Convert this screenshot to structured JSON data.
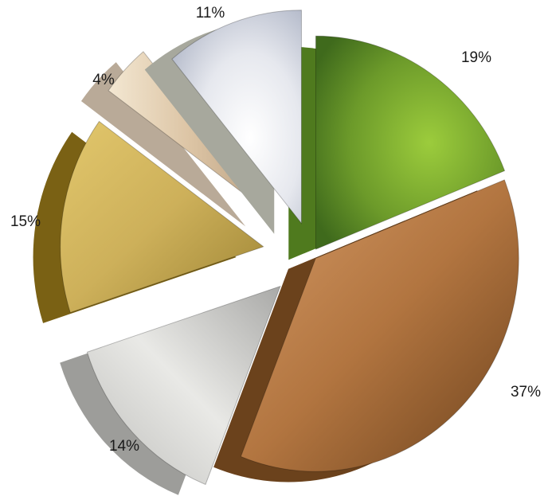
{
  "chart_data": {
    "type": "pie",
    "exploded": true,
    "style": "3d-textured",
    "slices": [
      {
        "label": "19%",
        "value": 19,
        "color": "#6e9b2c",
        "texture": "green-marble"
      },
      {
        "label": "37%",
        "value": 37,
        "color": "#b57a45",
        "texture": "brushed-copper"
      },
      {
        "label": "14%",
        "value": 14,
        "color": "#c9c9c7",
        "texture": "brushed-silver"
      },
      {
        "label": "15%",
        "value": 15,
        "color": "#c9a94e",
        "texture": "brushed-gold"
      },
      {
        "label": "4%",
        "value": 4,
        "color": "#e0cdb2",
        "texture": "pale-gold"
      },
      {
        "label": "11%",
        "value": 11,
        "color": "#dcdfe4",
        "texture": "diamond"
      }
    ]
  }
}
